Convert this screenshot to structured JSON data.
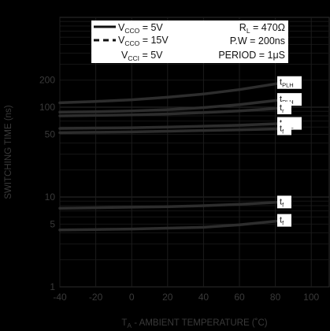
{
  "chart_data": {
    "type": "line",
    "title": "",
    "xlabel": "T_A - AMBIENT  TEMPERATURE (˚C)",
    "ylabel": "SWITCHING TIME (ns)",
    "x_scale": "linear",
    "y_scale": "log",
    "xlim": [
      -40,
      110
    ],
    "ylim": [
      1,
      1000
    ],
    "x_ticks": [
      "-40",
      "-20",
      "0",
      "20",
      "40",
      "60",
      "80",
      "100"
    ],
    "y_ticks": [
      "1",
      "5",
      "10",
      "50",
      "100",
      "200"
    ],
    "grid": true,
    "legend_position": "top",
    "legend": {
      "solid_label": [
        "V",
        "CCO",
        " = 5V"
      ],
      "dashed_label": [
        "V",
        "CCO",
        " = 15V"
      ],
      "vcci_label": [
        "V",
        "CCI",
        " = 5V"
      ],
      "conditions": [
        [
          "R",
          "L",
          " = 470Ω"
        ],
        [
          "P.W = 200ns",
          "",
          ""
        ],
        [
          "PERIOD = 1μS",
          "",
          ""
        ]
      ]
    },
    "series": [
      {
        "label": "t",
        "sub": "PLH",
        "x": [
          -40,
          -20,
          0,
          20,
          40,
          60,
          85
        ],
        "y": [
          112,
          116,
          121,
          129,
          140,
          157,
          188
        ]
      },
      {
        "label": "t",
        "sub": "PLH",
        "x": [
          -40,
          -20,
          0,
          20,
          40,
          60,
          85
        ],
        "y": [
          88,
          89,
          91,
          94,
          99,
          107,
          122
        ]
      },
      {
        "label": "t",
        "sub": "r",
        "x": [
          -40,
          -20,
          0,
          20,
          40,
          60,
          85
        ],
        "y": [
          80,
          81,
          82,
          84,
          87,
          91,
          98
        ]
      },
      {
        "label": "t",
        "sub": "PHL",
        "x": [
          -40,
          -20,
          0,
          20,
          40,
          60,
          85
        ],
        "y": [
          58,
          58.5,
          59,
          60,
          61.5,
          63,
          66
        ]
      },
      {
        "label": "t",
        "sub": "f",
        "x": [
          -40,
          -20,
          0,
          20,
          40,
          60,
          85
        ],
        "y": [
          52,
          52.5,
          53,
          54,
          55,
          56,
          57.5
        ]
      },
      {
        "label": "t",
        "sub": "f",
        "x": [
          -40,
          -20,
          0,
          20,
          40,
          60,
          85
        ],
        "y": [
          7.5,
          7.6,
          7.7,
          7.8,
          8,
          8.3,
          8.8
        ]
      },
      {
        "label": "t",
        "sub": "f",
        "x": [
          -40,
          -20,
          0,
          20,
          40,
          60,
          85
        ],
        "y": [
          4.3,
          4.35,
          4.4,
          4.5,
          4.6,
          4.9,
          5.5
        ]
      }
    ]
  }
}
